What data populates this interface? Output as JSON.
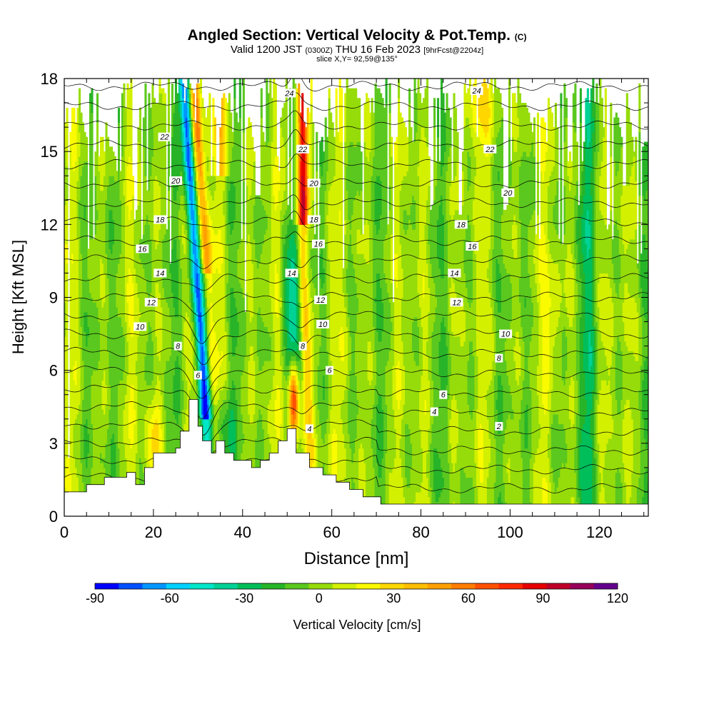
{
  "header": {
    "title_main": "Angled Section: Vertical Velocity & Pot.Temp.",
    "title_unit": "(C)",
    "valid_prefix": "Valid 1200 JST",
    "valid_zulu": "(0300Z)",
    "valid_date": "THU 16 Feb 2023",
    "valid_run": "[9hrFcst@2204z]",
    "slice": "slice X,Y= 92,59@135°"
  },
  "chart_data": {
    "type": "heatmap",
    "title": "Angled Section: Vertical Velocity & Pot.Temp. (C)",
    "xlabel": "Distance [nm]",
    "ylabel": "Height [Kft MSL]",
    "xlim": [
      0,
      131
    ],
    "ylim": [
      0,
      18
    ],
    "x_ticks": [
      0,
      20,
      40,
      60,
      80,
      100,
      120
    ],
    "y_ticks": [
      0,
      3,
      6,
      9,
      12,
      15,
      18
    ],
    "colorbar": {
      "label": "Vertical Velocity [cm/s]",
      "min": -90,
      "max": 120,
      "step": 10,
      "tick_labels": [
        "-90",
        "-60",
        "-30",
        "0",
        "30",
        "60",
        "90",
        "120"
      ],
      "colors": [
        "#0000ff",
        "#0050ff",
        "#0096ff",
        "#00d2ff",
        "#00e6c8",
        "#00d296",
        "#00be5a",
        "#28b428",
        "#5ac81e",
        "#96dc0a",
        "#d2f000",
        "#fafa00",
        "#ffd700",
        "#ffbe00",
        "#ffa000",
        "#ff7d00",
        "#ff5000",
        "#ff2800",
        "#e60000",
        "#be0028",
        "#96005a",
        "#64008c"
      ]
    },
    "terrain_kft": [
      [
        0,
        1.0
      ],
      [
        5,
        1.0
      ],
      [
        5,
        1.3
      ],
      [
        9,
        1.3
      ],
      [
        9,
        1.6
      ],
      [
        14,
        1.6
      ],
      [
        14,
        1.8
      ],
      [
        16,
        1.8
      ],
      [
        16,
        1.3
      ],
      [
        18,
        1.3
      ],
      [
        18,
        2.0
      ],
      [
        20,
        2.0
      ],
      [
        20,
        2.6
      ],
      [
        25,
        2.6
      ],
      [
        25,
        2.8
      ],
      [
        26,
        2.8
      ],
      [
        26,
        3.5
      ],
      [
        28,
        3.5
      ],
      [
        28,
        4.8
      ],
      [
        30,
        4.8
      ],
      [
        30,
        3.7
      ],
      [
        31,
        3.7
      ],
      [
        31,
        3.1
      ],
      [
        33,
        3.1
      ],
      [
        33,
        2.6
      ],
      [
        34,
        2.6
      ],
      [
        34,
        3.1
      ],
      [
        36,
        3.1
      ],
      [
        36,
        2.6
      ],
      [
        38,
        2.6
      ],
      [
        38,
        2.3
      ],
      [
        42,
        2.3
      ],
      [
        42,
        2.0
      ],
      [
        44,
        2.0
      ],
      [
        44,
        2.3
      ],
      [
        46,
        2.3
      ],
      [
        46,
        2.6
      ],
      [
        48,
        2.6
      ],
      [
        48,
        3.1
      ],
      [
        50,
        3.1
      ],
      [
        50,
        3.6
      ],
      [
        52,
        3.6
      ],
      [
        52,
        2.6
      ],
      [
        55,
        2.6
      ],
      [
        55,
        2.0
      ],
      [
        58,
        2.0
      ],
      [
        58,
        1.7
      ],
      [
        61,
        1.7
      ],
      [
        61,
        1.4
      ],
      [
        64,
        1.4
      ],
      [
        64,
        1.1
      ],
      [
        67,
        1.1
      ],
      [
        67,
        0.8
      ],
      [
        71,
        0.8
      ],
      [
        71,
        0.5
      ],
      [
        131,
        0.5
      ]
    ],
    "contour_labels": [
      {
        "text": "24",
        "x": 50.5,
        "y": 17.4
      },
      {
        "text": "24",
        "x": 92.5,
        "y": 17.5
      },
      {
        "text": "22",
        "x": 22.5,
        "y": 15.6
      },
      {
        "text": "22",
        "x": 53.5,
        "y": 15.1
      },
      {
        "text": "22",
        "x": 95.5,
        "y": 15.1
      },
      {
        "text": "20",
        "x": 25.0,
        "y": 13.8
      },
      {
        "text": "20",
        "x": 56.0,
        "y": 13.7
      },
      {
        "text": "20",
        "x": 99.5,
        "y": 13.3
      },
      {
        "text": "18",
        "x": 21.5,
        "y": 12.2
      },
      {
        "text": "18",
        "x": 56.0,
        "y": 12.2
      },
      {
        "text": "18",
        "x": 89.0,
        "y": 12.0
      },
      {
        "text": "16",
        "x": 17.5,
        "y": 11.0
      },
      {
        "text": "16",
        "x": 57.0,
        "y": 11.2
      },
      {
        "text": "16",
        "x": 91.5,
        "y": 11.1
      },
      {
        "text": "14",
        "x": 21.5,
        "y": 10.0
      },
      {
        "text": "14",
        "x": 51.0,
        "y": 10.0
      },
      {
        "text": "14",
        "x": 87.5,
        "y": 10.0
      },
      {
        "text": "12",
        "x": 19.5,
        "y": 8.8
      },
      {
        "text": "12",
        "x": 57.5,
        "y": 8.9
      },
      {
        "text": "12",
        "x": 88.0,
        "y": 8.8
      },
      {
        "text": "10",
        "x": 17.0,
        "y": 7.8
      },
      {
        "text": "10",
        "x": 58.0,
        "y": 7.9
      },
      {
        "text": "10",
        "x": 99.0,
        "y": 7.5
      },
      {
        "text": "8",
        "x": 25.5,
        "y": 7.0
      },
      {
        "text": "8",
        "x": 53.5,
        "y": 7.0
      },
      {
        "text": "8",
        "x": 97.5,
        "y": 6.5
      },
      {
        "text": "6",
        "x": 30.0,
        "y": 5.8
      },
      {
        "text": "6",
        "x": 59.5,
        "y": 6.0
      },
      {
        "text": "6",
        "x": 85.0,
        "y": 5.0
      },
      {
        "text": "4",
        "x": 55.0,
        "y": 3.6
      },
      {
        "text": "4",
        "x": 83.0,
        "y": 4.3
      },
      {
        "text": "2",
        "x": 97.5,
        "y": 3.7
      }
    ]
  }
}
